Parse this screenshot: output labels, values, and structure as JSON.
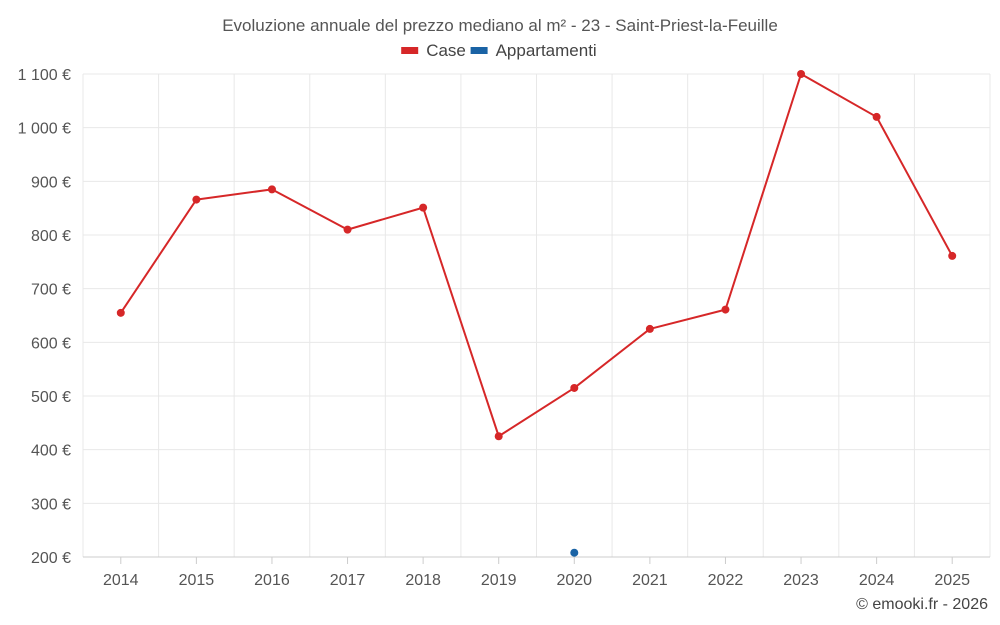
{
  "chart_data": {
    "type": "line",
    "title": "Evoluzione annuale del prezzo mediano al m² - 23 - Saint-Priest-la-Feuille",
    "categories": [
      "2014",
      "2015",
      "2016",
      "2017",
      "2018",
      "2019",
      "2020",
      "2021",
      "2022",
      "2023",
      "2024",
      "2025"
    ],
    "series": [
      {
        "name": "Case",
        "color": "#d62728",
        "values": [
          655,
          866,
          885,
          810,
          851,
          425,
          515,
          625,
          661,
          1100,
          1020,
          761
        ]
      },
      {
        "name": "Appartamenti",
        "color": "#1a63a5",
        "values": [
          null,
          null,
          null,
          null,
          null,
          null,
          208,
          null,
          null,
          null,
          null,
          null
        ]
      }
    ],
    "yticks": [
      200,
      300,
      400,
      500,
      600,
      700,
      800,
      900,
      1000,
      1100
    ],
    "ytick_labels": [
      "200 €",
      "300 €",
      "400 €",
      "500 €",
      "600 €",
      "700 €",
      "800 €",
      "900 €",
      "1 000 €",
      "1 100 €"
    ],
    "ylim": [
      200,
      1100
    ],
    "xlabel": "",
    "ylabel": "",
    "grid": true,
    "legend_position": "top-center"
  },
  "credit": "© emooki.fr - 2026"
}
